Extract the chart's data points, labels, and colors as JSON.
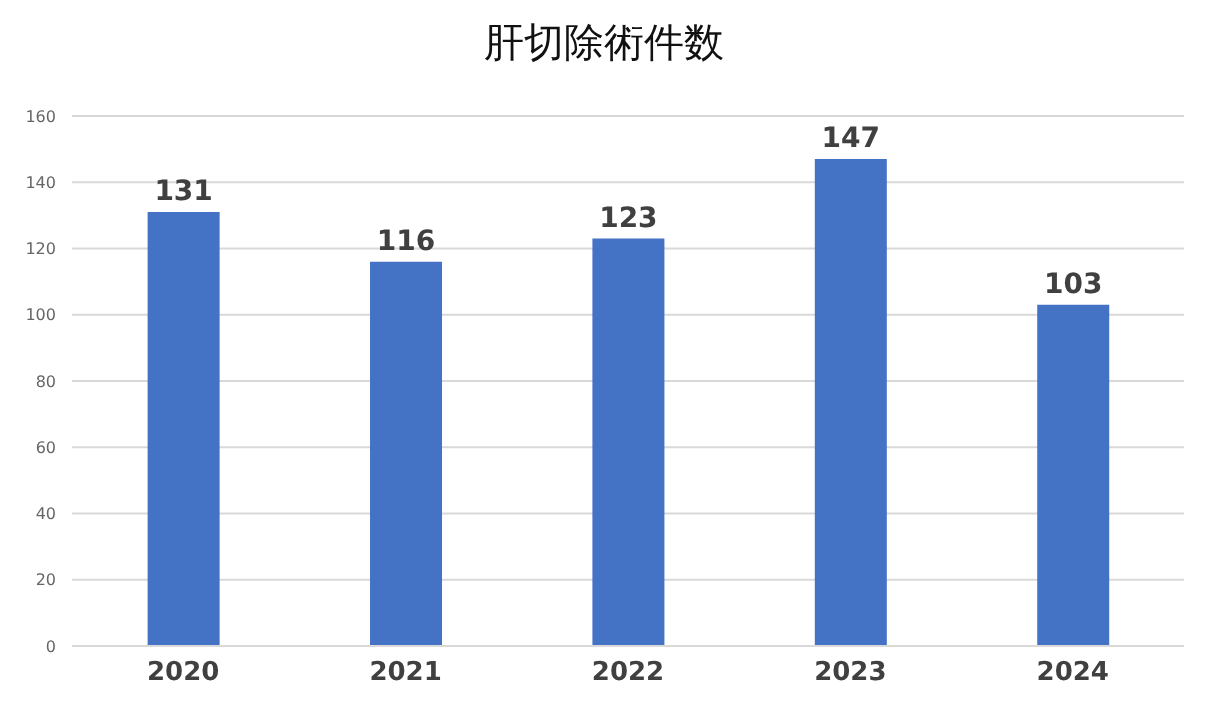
{
  "chart_data": {
    "type": "bar",
    "title": "肝切除術件数",
    "categories": [
      "2020",
      "2021",
      "2022",
      "2023",
      "2024"
    ],
    "values": [
      131,
      116,
      123,
      147,
      103
    ],
    "color": "#4472c4",
    "ylim": [
      0,
      160
    ],
    "yticks": [
      0,
      20,
      40,
      60,
      80,
      100,
      120,
      140,
      160
    ],
    "grid": "y",
    "data_labels": true
  }
}
